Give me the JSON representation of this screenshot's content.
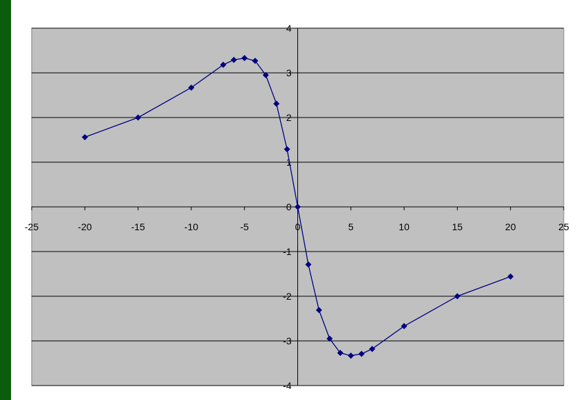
{
  "chart_data": {
    "type": "scatter",
    "title": "",
    "xlabel": "",
    "ylabel": "",
    "xlim": [
      -25,
      25
    ],
    "ylim": [
      -4,
      4
    ],
    "x_ticks": [
      -25,
      -20,
      -15,
      -10,
      -5,
      0,
      5,
      10,
      15,
      20,
      25
    ],
    "y_ticks": [
      -4,
      -3,
      -2,
      -1,
      0,
      1,
      2,
      3,
      4
    ],
    "x_tick_labels": [
      "-25",
      "-20",
      "-15",
      "-10",
      "-5",
      "0",
      "5",
      "10",
      "15",
      "20",
      "25"
    ],
    "y_tick_labels": [
      "-4",
      "-3",
      "-2",
      "-1",
      "0",
      "1",
      "2",
      "3",
      "4"
    ],
    "grid": "horizontal major gridlines",
    "legend": "none",
    "colors": {
      "plot_background": "#c0c0c0",
      "series": "#000080",
      "gridline": "#000000",
      "page_border": "#0b5d0b"
    },
    "series": [
      {
        "marker": "diamond",
        "line": "straight",
        "x": [
          -20,
          -15,
          -10,
          -7,
          -6,
          -5,
          -4,
          -3,
          -2,
          -1,
          0,
          1,
          2,
          3,
          4,
          5,
          6,
          7,
          10,
          15,
          20
        ],
        "y": [
          1.56,
          2.0,
          2.67,
          3.18,
          3.29,
          3.33,
          3.27,
          2.95,
          2.31,
          1.29,
          0,
          -1.29,
          -2.31,
          -2.95,
          -3.27,
          -3.33,
          -3.29,
          -3.18,
          -2.67,
          -2.0,
          -1.56
        ]
      }
    ]
  }
}
